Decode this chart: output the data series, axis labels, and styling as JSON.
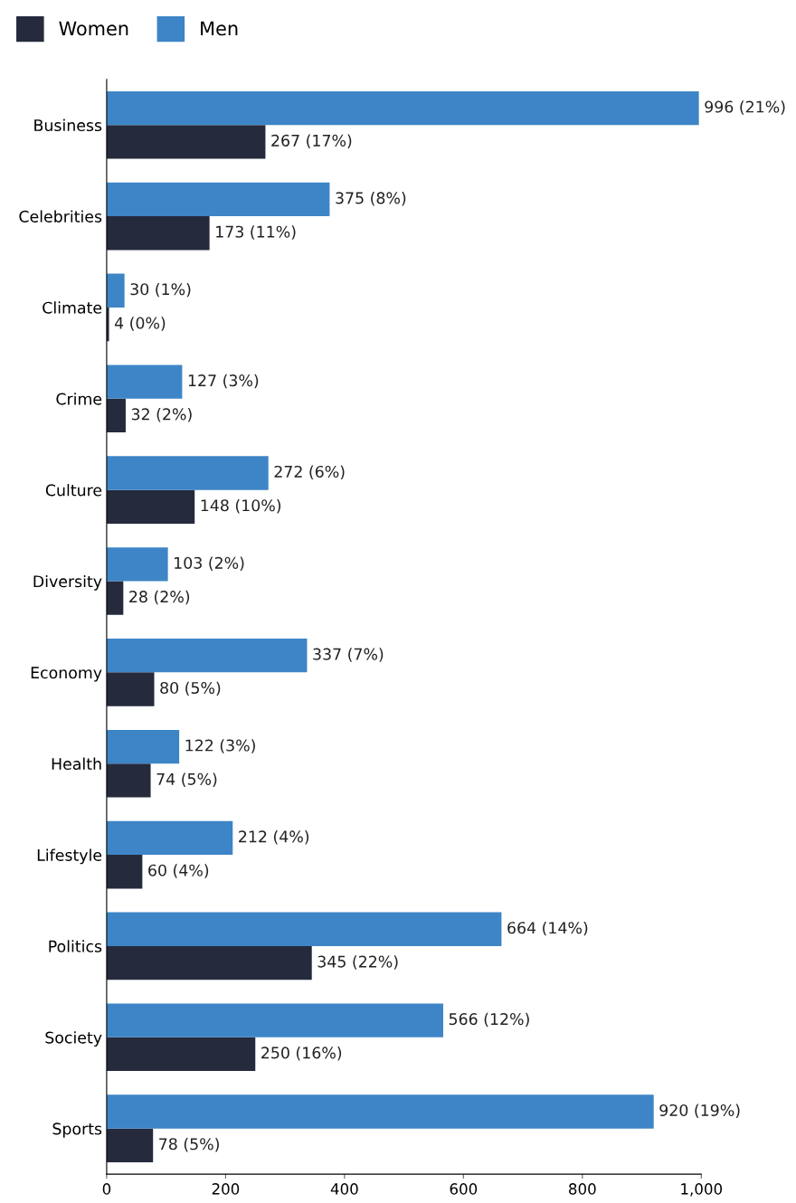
{
  "chart_data": {
    "type": "bar",
    "orientation": "horizontal",
    "categories": [
      "Business",
      "Celebrities",
      "Climate",
      "Crime",
      "Culture",
      "Diversity",
      "Economy",
      "Health",
      "Lifestyle",
      "Politics",
      "Society",
      "Sports"
    ],
    "series": [
      {
        "name": "Women",
        "color": "#252a3d",
        "values": [
          267,
          173,
          4,
          32,
          148,
          28,
          80,
          74,
          60,
          345,
          250,
          78
        ],
        "value_labels": [
          "267 (17%)",
          "173 (11%)",
          "4 (0%)",
          "32 (2%)",
          "148 (10%)",
          "28 (2%)",
          "80 (5%)",
          "74 (5%)",
          "60 (4%)",
          "345 (22%)",
          "250 (16%)",
          "78 (5%)"
        ]
      },
      {
        "name": "Men",
        "color": "#3d85c6",
        "values": [
          996,
          375,
          30,
          127,
          272,
          103,
          337,
          122,
          212,
          664,
          566,
          920
        ],
        "value_labels": [
          "996 (21%)",
          "375 (8%)",
          "30 (1%)",
          "127 (3%)",
          "272 (6%)",
          "103 (2%)",
          "337 (7%)",
          "122 (3%)",
          "212 (4%)",
          "664 (14%)",
          "566 (12%)",
          "920 (19%)"
        ]
      }
    ],
    "xlim": [
      0,
      1000
    ],
    "xticks": [
      0,
      200,
      400,
      600,
      800,
      {
        "value": 1000,
        "label": "1,000"
      }
    ],
    "grid": false,
    "legend": "top left"
  }
}
